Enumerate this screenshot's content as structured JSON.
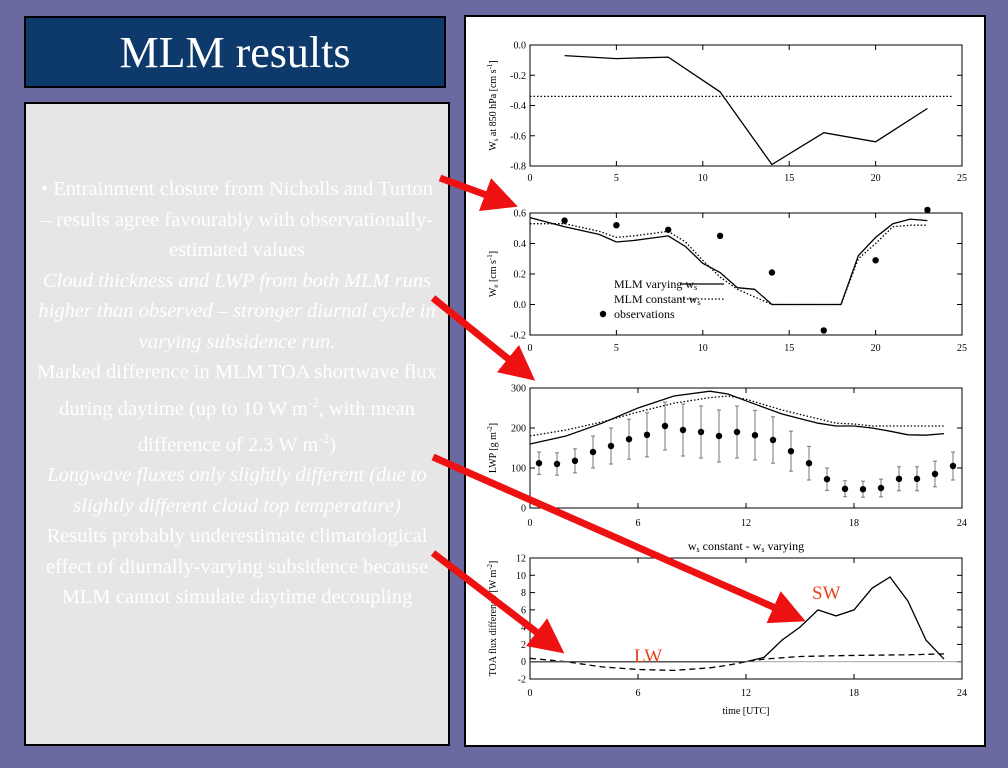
{
  "title": "MLM results",
  "bullets": [
    {
      "text": "• Entrainment closure from Nicholls and Turton – results agree favourably with observationally-estimated values",
      "style": "normal"
    },
    {
      "text": "Cloud thickness and LWP from both MLM runs higher than observed – stronger diurnal cycle in varying subsidence run.",
      "style": "italic"
    },
    {
      "text": "Marked difference in MLM TOA shortwave flux during daytime (up to 10 W m-2, with mean difference of  2.3 W m-2)",
      "style": "normal"
    },
    {
      "text": "Longwave fluxes only slightly different (due to slightly different cloud top temperature)",
      "style": "italic"
    },
    {
      "text": "Results probably underestimate climatological effect of  diurnally-varying subsidence because MLM cannot simulate daytime decoupling",
      "style": "normal"
    }
  ],
  "colors": {
    "background": "#6a6aa0",
    "title_bg": "#0d3a6b",
    "arrow": "#ee1111",
    "annotation": "#e8431b"
  },
  "chart_data": [
    {
      "type": "line",
      "ylabel": "Ws at 850 hPa [cm s-1]",
      "xlim": [
        0,
        25
      ],
      "ylim": [
        -0.8,
        0.0
      ],
      "xticks": [
        0,
        5,
        10,
        15,
        20,
        25
      ],
      "yticks": [
        0.0,
        -0.2,
        -0.4,
        -0.6,
        -0.8
      ],
      "series": [
        {
          "style": "solid",
          "x": [
            2,
            5,
            8,
            11,
            14,
            17,
            20,
            23
          ],
          "y": [
            -0.07,
            -0.09,
            -0.08,
            -0.31,
            -0.79,
            -0.58,
            -0.64,
            -0.42
          ]
        },
        {
          "style": "dotted",
          "x": [
            0,
            24.5
          ],
          "y": [
            -0.34,
            -0.34
          ]
        }
      ]
    },
    {
      "type": "line",
      "ylabel": "We [cm s-1]",
      "xlim": [
        0,
        25
      ],
      "ylim": [
        -0.2,
        0.6
      ],
      "xticks": [
        0,
        5,
        10,
        15,
        20,
        25
      ],
      "yticks": [
        0.6,
        0.4,
        0.2,
        0.0,
        -0.2
      ],
      "legend": [
        "MLM varying ws",
        "MLM constant ws",
        "observations"
      ],
      "series": [
        {
          "name": "MLM varying ws",
          "style": "solid",
          "x": [
            0,
            2,
            4,
            5,
            6,
            8,
            9,
            10,
            11,
            12,
            13,
            14,
            15,
            16,
            17,
            18,
            19,
            20,
            21,
            22,
            23
          ],
          "y": [
            0.57,
            0.51,
            0.46,
            0.41,
            0.42,
            0.45,
            0.38,
            0.27,
            0.21,
            0.11,
            0.1,
            0.0,
            0.0,
            0.0,
            0.0,
            0.0,
            0.32,
            0.44,
            0.53,
            0.56,
            0.55
          ]
        },
        {
          "name": "MLM constant ws",
          "style": "dotted",
          "x": [
            0,
            2,
            4,
            5,
            6,
            8,
            9,
            10,
            11,
            12,
            13,
            14,
            15,
            16,
            17,
            18,
            19,
            20,
            21,
            22,
            23
          ],
          "y": [
            0.53,
            0.53,
            0.48,
            0.44,
            0.45,
            0.48,
            0.41,
            0.29,
            0.18,
            0.1,
            0.05,
            0.0,
            0.0,
            0.0,
            0.0,
            0.0,
            0.3,
            0.4,
            0.51,
            0.52,
            0.52
          ]
        },
        {
          "name": "observations",
          "style": "markers",
          "x": [
            2,
            5,
            8,
            11,
            14,
            17,
            20,
            23
          ],
          "y": [
            0.55,
            0.52,
            0.49,
            0.45,
            0.21,
            -0.17,
            0.29,
            0.62
          ]
        }
      ]
    },
    {
      "type": "line",
      "ylabel": "LWP [g m-2]",
      "xlim": [
        0,
        24
      ],
      "ylim": [
        0,
        300
      ],
      "xticks": [
        0,
        6,
        12,
        18,
        24
      ],
      "yticks": [
        300,
        200,
        100,
        0
      ],
      "series": [
        {
          "style": "solid",
          "x": [
            0,
            2,
            4,
            6,
            8,
            10,
            11,
            12,
            14,
            16,
            17,
            18,
            19,
            20,
            21,
            22,
            23
          ],
          "y": [
            160,
            180,
            212,
            250,
            280,
            292,
            285,
            268,
            235,
            212,
            205,
            205,
            200,
            192,
            183,
            182,
            186
          ]
        },
        {
          "style": "dotted",
          "x": [
            0,
            2,
            4,
            6,
            8,
            10,
            11,
            12,
            14,
            16,
            17,
            18,
            19,
            20,
            21,
            22,
            23
          ],
          "y": [
            180,
            195,
            215,
            240,
            262,
            276,
            280,
            272,
            245,
            223,
            212,
            210,
            205,
            205,
            205,
            205,
            205
          ]
        },
        {
          "style": "markers-errorbars",
          "x": [
            0.5,
            1.5,
            2.5,
            3.5,
            4.5,
            5.5,
            6.5,
            7.5,
            8.5,
            9.5,
            10.5,
            11.5,
            12.5,
            13.5,
            14.5,
            15.5,
            16.5,
            17.5,
            18.5,
            19.5,
            20.5,
            21.5,
            22.5,
            23.5
          ],
          "y": [
            112,
            110,
            118,
            140,
            155,
            172,
            183,
            205,
            195,
            190,
            180,
            190,
            182,
            170,
            142,
            112,
            72,
            48,
            47,
            50,
            73,
            73,
            85,
            105
          ],
          "err": [
            28,
            28,
            30,
            40,
            45,
            50,
            55,
            60,
            65,
            65,
            65,
            65,
            62,
            58,
            50,
            42,
            28,
            20,
            20,
            22,
            30,
            30,
            32,
            35
          ]
        }
      ]
    },
    {
      "type": "line",
      "title": "ws constant - ws varying",
      "xlabel": "time [UTC]",
      "ylabel": "TOA flux difference [W m-2]",
      "xlim": [
        0,
        24
      ],
      "ylim": [
        -2,
        12
      ],
      "xticks": [
        0,
        6,
        12,
        18,
        24
      ],
      "yticks": [
        12,
        10,
        8,
        6,
        4,
        2,
        0,
        -2
      ],
      "annotations": [
        "SW",
        "LW"
      ],
      "series": [
        {
          "name": "SW",
          "style": "solid",
          "x": [
            0,
            12,
            13,
            14,
            15,
            16,
            17,
            18,
            19,
            20,
            21,
            22,
            23
          ],
          "y": [
            0,
            0,
            0.5,
            2.5,
            4,
            6,
            5.3,
            6,
            8.5,
            9.8,
            7,
            2.5,
            0.3
          ]
        },
        {
          "name": "LW",
          "style": "dashed",
          "x": [
            0,
            1,
            2,
            3,
            4,
            6,
            8,
            10,
            11,
            12,
            13,
            15,
            17,
            19,
            21,
            23
          ],
          "y": [
            0.4,
            0.2,
            0,
            -0.3,
            -0.6,
            -0.9,
            -1.0,
            -0.7,
            -0.4,
            0,
            0.3,
            0.6,
            0.7,
            0.75,
            0.8,
            0.9
          ]
        }
      ]
    }
  ]
}
